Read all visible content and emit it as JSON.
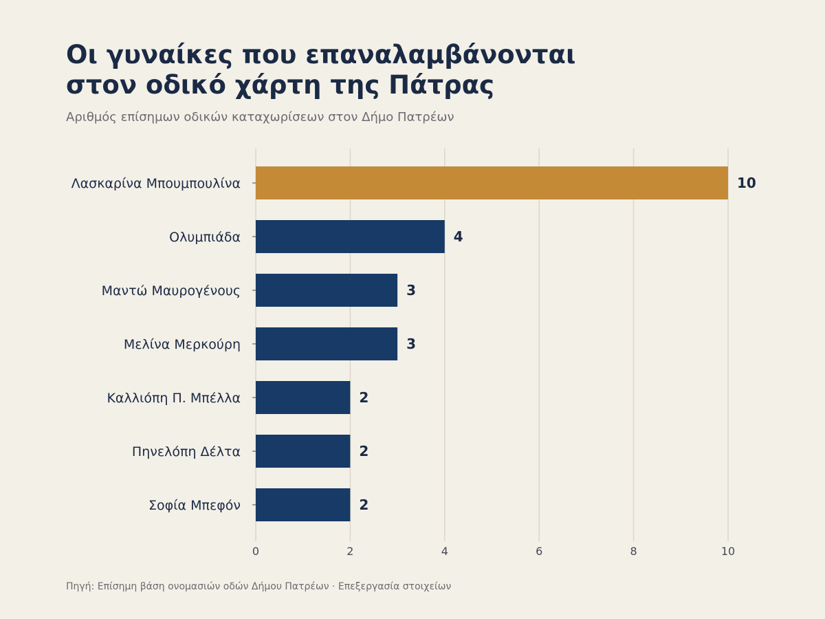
{
  "header": {
    "title_line1": "Οι γυναίκες που επαναλαμβάνονται",
    "title_line2": "στον οδικό χάρτη της Πάτρας",
    "subtitle": "Αριθμός επίσημων οδικών καταχωρίσεων στον Δήμο Πατρέων"
  },
  "footer": {
    "source": "Πηγή: Επίσημη βάση ονομασιών οδών Δήμου Πατρέων · Επεξεργασία στοιχείων"
  },
  "colors": {
    "highlight": "#c48a36",
    "bar": "#173a66",
    "grid": "#ddd6c8",
    "label": "#1b2a44",
    "tick": "#444a55"
  },
  "chart_data": {
    "type": "bar",
    "orientation": "horizontal",
    "categories": [
      "Λασκαρίνα Μπουμπουλίνα",
      "Ολυμπιάδα",
      "Μαντώ Μαυρογένους",
      "Μελίνα Μερκούρη",
      "Καλλιόπη Π. Μπέλλα",
      "Πηνελόπη Δέλτα",
      "Σοφία Μπεφόν"
    ],
    "values": [
      10,
      4,
      3,
      3,
      2,
      2,
      2
    ],
    "data_labels": [
      "10",
      "4",
      "3",
      "3",
      "2",
      "2",
      "2"
    ],
    "highlight_index": 0,
    "xlim": [
      0,
      10
    ],
    "xticks": [
      0,
      2,
      4,
      6,
      8,
      10
    ],
    "xtick_labels": [
      "0",
      "2",
      "4",
      "6",
      "8",
      "10"
    ],
    "grid": "vertical",
    "legend": "none"
  }
}
